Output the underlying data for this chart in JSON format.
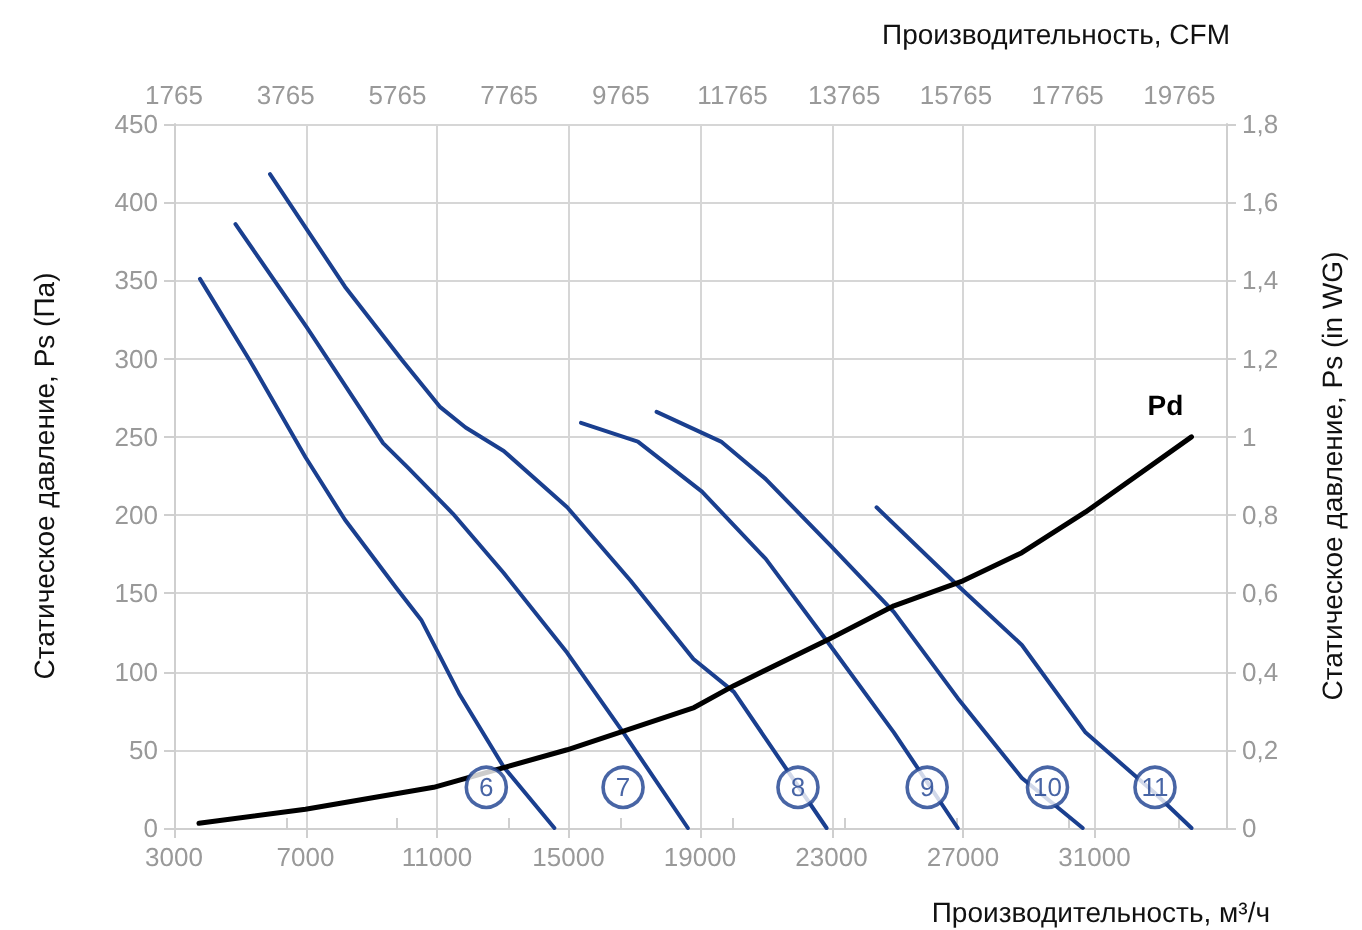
{
  "chart_data": {
    "type": "line",
    "xlabel": "Производительность, м³/ч",
    "x2label": "Производительность, CFM",
    "ylabel": "Статическое давление, Ps (Па)",
    "y2label": "Статическое давление, Ps (in WG)",
    "xlim": [
      3000,
      35000
    ],
    "xticks": [
      3000,
      7000,
      11000,
      15000,
      19000,
      23000,
      27000,
      31000
    ],
    "x2lim": [
      1765,
      20600
    ],
    "x2ticks": [
      1765,
      3765,
      5765,
      7765,
      9765,
      11765,
      13765,
      15765,
      17765,
      19765
    ],
    "ylim": [
      0,
      450
    ],
    "yticks": [
      0,
      50,
      100,
      150,
      200,
      250,
      300,
      350,
      400,
      450
    ],
    "y2lim": [
      0,
      1.8
    ],
    "y2ticks": [
      0,
      {
        "value": 0.2,
        "label": "0,2"
      },
      {
        "value": 0.4,
        "label": "0,4"
      },
      {
        "value": 0.6,
        "label": "0,6"
      },
      {
        "value": 0.8,
        "label": "0,8"
      },
      1,
      {
        "value": 1.2,
        "label": "1,2"
      },
      {
        "value": 1.4,
        "label": "1,4"
      },
      {
        "value": 1.6,
        "label": "1,6"
      },
      {
        "value": 1.8,
        "label": "1,8"
      }
    ],
    "grid": true,
    "legend": false,
    "marker": "none",
    "line_style": "solid",
    "series": [
      {
        "color": "#1a3f8f",
        "x": [
          3790,
          5300,
          7000,
          8200,
          9740,
          10520,
          11670,
          13030,
          14570
        ],
        "values": [
          351,
          299,
          237,
          197,
          154,
          133,
          86,
          39,
          0
        ]
      },
      {
        "color": "#1a3f8f",
        "x": [
          4870,
          7040,
          9360,
          10130,
          11480,
          13030,
          14960,
          16700,
          18630
        ],
        "values": [
          386,
          320,
          246,
          230,
          201,
          163,
          112,
          60,
          0
        ]
      },
      {
        "color": "#1a3f8f",
        "x": [
          5920,
          8200,
          9940,
          11100,
          11870,
          13030,
          14960,
          16890,
          18800,
          20030,
          22850
        ],
        "values": [
          418,
          346,
          299,
          269,
          256,
          241,
          205,
          158,
          108,
          87,
          0
        ]
      },
      {
        "color": "#1a3f8f",
        "x": [
          15380,
          17110,
          19060,
          21000,
          22950,
          24900,
          26840
        ],
        "values": [
          259,
          247,
          215,
          172,
          117,
          61,
          0
        ]
      },
      {
        "color": "#1a3f8f",
        "x": [
          17680,
          19640,
          21000,
          22950,
          24900,
          26840,
          28790,
          30640
        ],
        "values": [
          266,
          247,
          223,
          181,
          138,
          83,
          32,
          0
        ]
      },
      {
        "color": "#1a3f8f",
        "x": [
          24370,
          26840,
          28790,
          30730,
          32800,
          33950
        ],
        "values": [
          205,
          155,
          117,
          61,
          23,
          0
        ]
      },
      {
        "color": "#000000",
        "x": [
          3760,
          7000,
          10900,
          14960,
          18820,
          20030,
          22950,
          24900,
          27000,
          28790,
          30730,
          33950
        ],
        "name": "Pd",
        "values": [
          3,
          12,
          26,
          50,
          77,
          91,
          121,
          142,
          158,
          176,
          202,
          250
        ]
      }
    ],
    "annotations": [
      {
        "text": "6",
        "x": 12500,
        "y": 26
      },
      {
        "text": "7",
        "x": 16660,
        "y": 26
      },
      {
        "text": "8",
        "x": 21980,
        "y": 26
      },
      {
        "text": "9",
        "x": 25910,
        "y": 26
      },
      {
        "text": "10",
        "x": 29570,
        "y": 26
      },
      {
        "text": "11",
        "x": 32840,
        "y": 26
      }
    ]
  }
}
